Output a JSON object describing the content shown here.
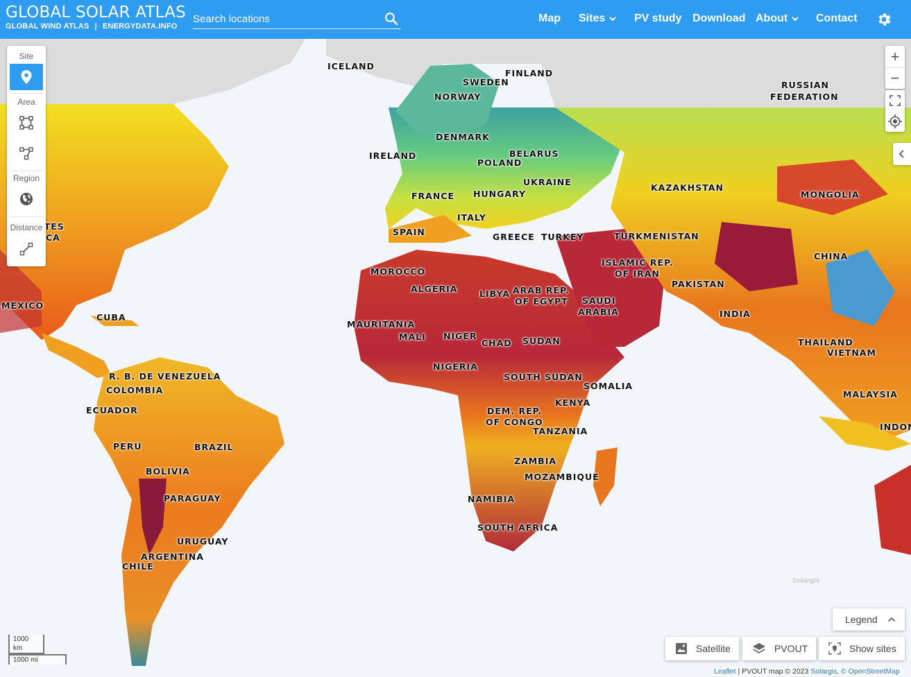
{
  "header": {
    "title": "GLOBAL SOLAR ATLAS",
    "sub_links": [
      "GLOBAL WIND ATLAS",
      "ENERGYDATA.INFO"
    ],
    "search_placeholder": "Search locations",
    "nav": [
      {
        "label": "Map",
        "dropdown": false
      },
      {
        "label": "Sites",
        "dropdown": true
      },
      {
        "label": "PV study",
        "dropdown": false
      },
      {
        "label": "Download",
        "dropdown": false
      },
      {
        "label": "About",
        "dropdown": true
      },
      {
        "label": "Contact",
        "dropdown": false
      }
    ],
    "color": "#2e9cf0"
  },
  "toolbar": {
    "site_label": "Site",
    "area_label": "Area",
    "region_label": "Region",
    "distance_label": "Distance",
    "icons": [
      "map-pin-icon",
      "rectangle-select-icon",
      "polygon-select-icon",
      "globe-icon",
      "measure-line-icon"
    ]
  },
  "map": {
    "layer": "PVOUT",
    "labels": {
      "iceland": "ICELAND",
      "finland": "FINLAND",
      "sweden": "SWEDEN",
      "norway": "NORWAY",
      "russia_1": "RUSSIAN",
      "russia_2": "FEDERATION",
      "denmark": "DENMARK",
      "ireland": "IRELAND",
      "belarus": "BELARUS",
      "poland": "POLAND",
      "ukraine": "UKRAINE",
      "kazakhstan": "KAZAKHSTAN",
      "france": "FRANCE",
      "hungary": "HUNGARY",
      "mongolia": "MONGOLIA",
      "italy": "ITALY",
      "spain": "SPAIN",
      "greece": "GREECE",
      "turkey": "TURKEY",
      "turkmenistan": "TURKMENISTAN",
      "usa_1": "ATES",
      "usa_2": "CA",
      "morocco": "MOROCCO",
      "iran_1": "ISLAMIC REP.",
      "iran_2": "OF IRAN",
      "china": "CHINA",
      "algeria": "ALGERIA",
      "libya": "LIBYA",
      "egypt_1": "ARAB REP.",
      "egypt_2": "OF EGYPT",
      "saudi_1": "SAUDI",
      "saudi_2": "ARABIA",
      "pakistan": "PAKISTAN",
      "mexico": "MEXICO",
      "india": "INDIA",
      "cuba": "CUBA",
      "mauritania": "MAURITANIA",
      "mali": "MALI",
      "niger": "NIGER",
      "chad": "CHAD",
      "sudan": "SUDAN",
      "thailand": "THAILAND",
      "vietnam": "VIETNAM",
      "nigeria": "NIGERIA",
      "venezuela": "R. B. DE VENEZUELA",
      "south_sudan": "SOUTH SUDAN",
      "colombia": "COLOMBIA",
      "somalia": "SOMALIA",
      "malaysia": "MALAYSIA",
      "kenya": "KENYA",
      "ecuador": "ECUADOR",
      "drc_1": "DEM. REP.",
      "drc_2": "OF CONGO",
      "indonesia": "INDON",
      "tanzania": "TANZANIA",
      "peru": "PERU",
      "brazil": "BRAZIL",
      "zambia": "ZAMBIA",
      "bolivia": "BOLIVIA",
      "mozambique": "MOZAMBIQUE",
      "paraguay": "PARAGUAY",
      "namibia": "NAMIBIA",
      "south_africa": "SOUTH AFRICA",
      "uruguay": "URUGUAY",
      "argentina": "ARGENTINA",
      "chile": "CHILE"
    },
    "watermark": "Solargis"
  },
  "controls": {
    "zoom_in": "+",
    "zoom_out": "−",
    "legend_label": "Legend",
    "layers": [
      {
        "label": "Satellite",
        "icon": "image-icon"
      },
      {
        "label": "PVOUT",
        "icon": "layers-icon"
      },
      {
        "label": "Show sites",
        "icon": "show-sites-icon"
      }
    ]
  },
  "scale": {
    "km": "1000 km",
    "mi": "1000 mi"
  },
  "attribution": {
    "leaflet": "Leaflet",
    "text": " | PVOUT map © 2023 ",
    "solargis": "Solargis",
    "osm": "© OpenStreetMap"
  }
}
